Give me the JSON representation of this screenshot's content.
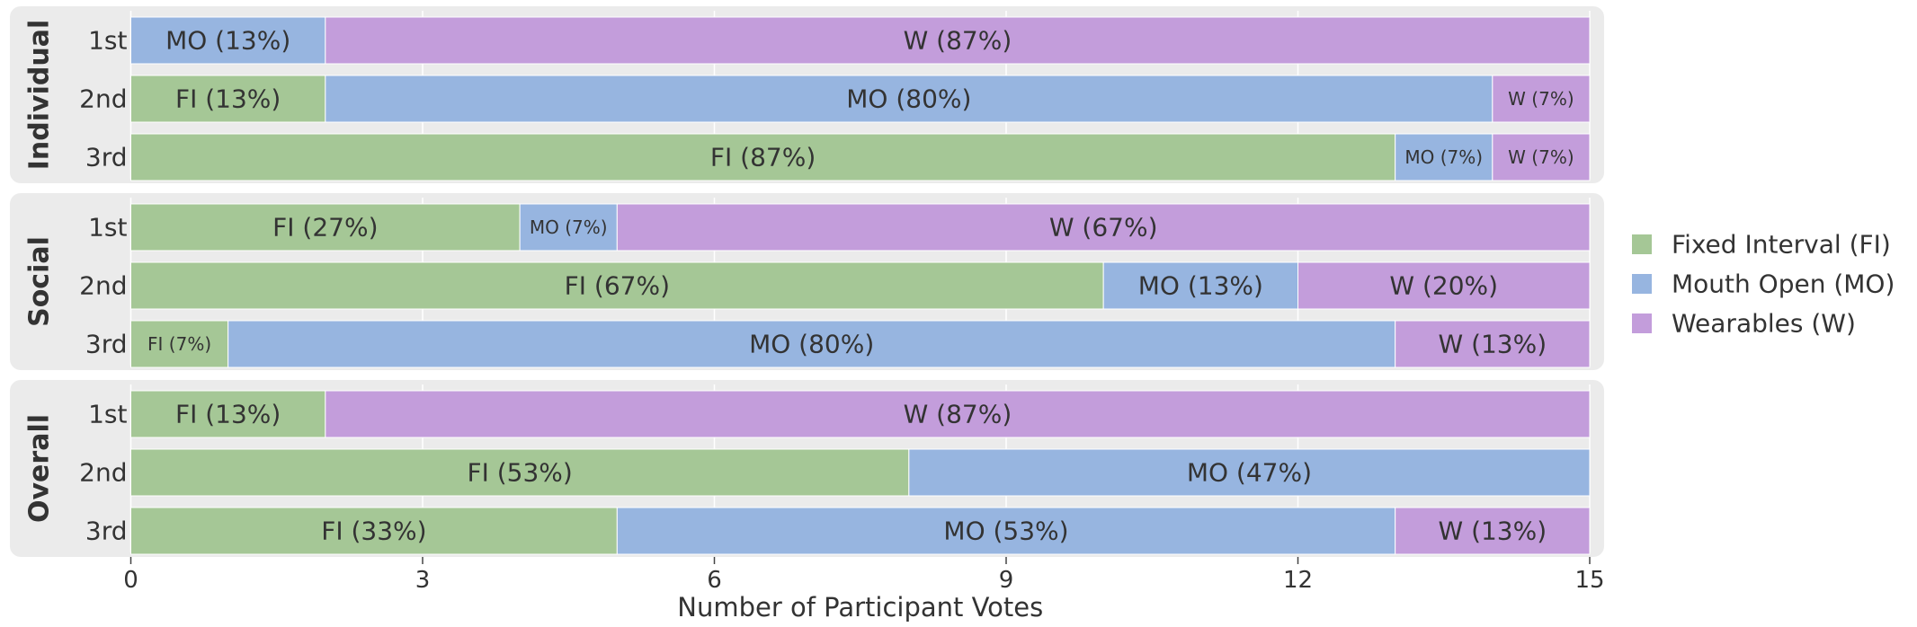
{
  "chart_data": [
    {
      "type": "bar",
      "title": "Individual",
      "categories": [
        "1st",
        "2nd",
        "3rd"
      ],
      "xlim": [
        0,
        15
      ],
      "xticks": [
        0,
        3,
        6,
        9,
        12,
        15
      ],
      "series": [
        {
          "name": "Fixed Interval (FI)",
          "color": "#a5c796",
          "values": [
            0,
            2,
            13
          ],
          "value_labels": [
            null,
            "FI (13%)",
            "FI (87%)"
          ]
        },
        {
          "name": "Mouth Open (MO)",
          "color": "#97b5e0",
          "values": [
            2,
            12,
            1
          ],
          "value_labels": [
            "MO (13%)",
            "MO (80%)",
            "MO (7%)"
          ]
        },
        {
          "name": "Wearables (W)",
          "color": "#c39ddb",
          "values": [
            13,
            1,
            1
          ],
          "value_labels": [
            "W (87%)",
            "W (7%)",
            "W (7%)"
          ]
        }
      ]
    },
    {
      "type": "bar",
      "title": "Social",
      "categories": [
        "1st",
        "2nd",
        "3rd"
      ],
      "xlim": [
        0,
        15
      ],
      "xticks": [
        0,
        3,
        6,
        9,
        12,
        15
      ],
      "series": [
        {
          "name": "Fixed Interval (FI)",
          "color": "#a5c796",
          "values": [
            4,
            10,
            1
          ],
          "value_labels": [
            "FI (27%)",
            "FI (67%)",
            "FI (7%)"
          ]
        },
        {
          "name": "Mouth Open (MO)",
          "color": "#97b5e0",
          "values": [
            1,
            2,
            12
          ],
          "value_labels": [
            "MO (7%)",
            "MO (13%)",
            "MO (80%)"
          ]
        },
        {
          "name": "Wearables (W)",
          "color": "#c39ddb",
          "values": [
            10,
            3,
            2
          ],
          "value_labels": [
            "W (67%)",
            "W (20%)",
            "W (13%)"
          ]
        }
      ]
    },
    {
      "type": "bar",
      "title": "Overall",
      "categories": [
        "1st",
        "2nd",
        "3rd"
      ],
      "xlim": [
        0,
        15
      ],
      "xticks": [
        0,
        3,
        6,
        9,
        12,
        15
      ],
      "x_label": "Number of Participant Votes",
      "series": [
        {
          "name": "Fixed Interval (FI)",
          "color": "#a5c796",
          "values": [
            2,
            8,
            5
          ],
          "value_labels": [
            "FI (13%)",
            "FI (53%)",
            "FI (33%)"
          ]
        },
        {
          "name": "Mouth Open (MO)",
          "color": "#97b5e0",
          "values": [
            0,
            7,
            8
          ],
          "value_labels": [
            null,
            "MO (47%)",
            "MO (53%)"
          ]
        },
        {
          "name": "Wearables (W)",
          "color": "#c39ddb",
          "values": [
            13,
            0,
            2
          ],
          "value_labels": [
            "W (87%)",
            null,
            "W (13%)"
          ]
        }
      ]
    }
  ]
}
